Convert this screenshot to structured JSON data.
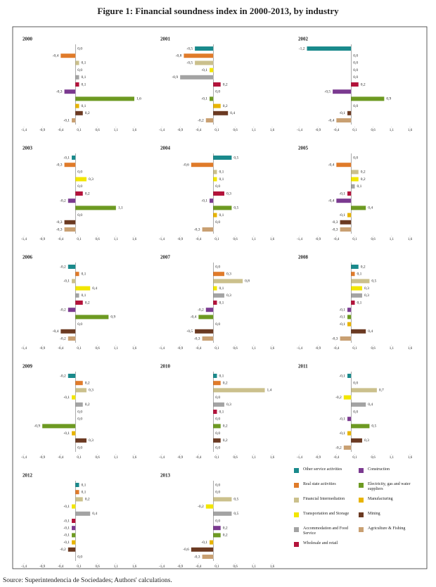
{
  "chart_data": {
    "type": "bar",
    "orientation": "horizontal",
    "title": "Figure 1: Financial soundness index in 2000-2013, by industry",
    "source": "Source: Superintendencia de Sociedades; Authors' calculations.",
    "categories": [
      "Other service activities",
      "Real state activities",
      "Financial Intermediation",
      "Transportation and Storage",
      "Accommodation and Food Service",
      "Wholesale and retail",
      "Construction",
      "Electricity, gas and water suppliers",
      "Manufacturing",
      "Mining",
      "Agriculture & Fishing"
    ],
    "colors": [
      "#1a8a8c",
      "#e07b2a",
      "#cbc08c",
      "#f2e600",
      "#a3a3a3",
      "#b3133b",
      "#7b3a90",
      "#6d9a22",
      "#e8b400",
      "#6b3a22",
      "#c9a072"
    ],
    "xlim": [
      -1.4,
      1.6
    ],
    "xticks": [
      {
        "value": -1.4,
        "label": "-1,4"
      },
      {
        "value": -0.9,
        "label": "-0,9"
      },
      {
        "value": -0.4,
        "label": "-0,4"
      },
      {
        "value": 0.1,
        "label": "0,1"
      },
      {
        "value": 0.6,
        "label": "0,6"
      },
      {
        "value": 1.1,
        "label": "1,1"
      },
      {
        "value": 1.6,
        "label": "1,6"
      }
    ],
    "panels": [
      {
        "title": "2000",
        "values": [
          0.0,
          -0.4,
          0.1,
          0.0,
          0.1,
          0.1,
          -0.3,
          1.6,
          0.1,
          0.2,
          -0.1
        ],
        "value_labels": [
          "0,0",
          "-0,4",
          "0,1",
          "0,0",
          "0,1",
          "0,1",
          "-0,3",
          "1,6",
          "0,1",
          "0,2",
          "-0,1"
        ]
      },
      {
        "title": "2001",
        "values": [
          -0.5,
          -0.8,
          -0.5,
          -0.1,
          -0.9,
          0.2,
          0.0,
          -0.1,
          0.2,
          0.4,
          -0.2
        ],
        "value_labels": [
          "-0,5",
          "-0,8",
          "-0,5",
          "-0,1",
          "-0,9",
          "0,2",
          "0,0",
          "-0,1",
          "0,2",
          "0,4",
          "-0,2"
        ]
      },
      {
        "title": "2002",
        "values": [
          -1.2,
          0.0,
          0.0,
          0.0,
          0.0,
          0.2,
          -0.5,
          0.9,
          0.0,
          -0.1,
          -0.4
        ],
        "value_labels": [
          "-1,2",
          "0,0",
          "0,0",
          "0,0",
          "0,0",
          "0,2",
          "-0,5",
          "0,9",
          "0,0",
          "-0,1",
          "-0,4"
        ]
      },
      {
        "title": "2003",
        "values": [
          -0.1,
          -0.3,
          0.0,
          0.3,
          0.0,
          0.2,
          -0.2,
          1.1,
          0.0,
          -0.3,
          -0.3
        ],
        "value_labels": [
          "-0,1",
          "-0,3",
          "0,0",
          "0,3",
          "0,0",
          "0,2",
          "-0,2",
          "1,1",
          "0,0",
          "-0,3",
          "-0,3"
        ]
      },
      {
        "title": "2004",
        "values": [
          0.5,
          -0.6,
          0.1,
          0.1,
          0.0,
          0.3,
          -0.1,
          0.5,
          0.1,
          0.0,
          -0.3
        ],
        "value_labels": [
          "0,5",
          "-0,6",
          "0,1",
          "0,1",
          "0,0",
          "0,3",
          "-0,1",
          "0,5",
          "0,1",
          "0,0",
          "-0,3"
        ]
      },
      {
        "title": "2005",
        "values": [
          0.0,
          -0.4,
          0.2,
          0.2,
          0.1,
          -0.1,
          -0.4,
          0.4,
          -0.1,
          -0.3,
          -0.3
        ],
        "value_labels": [
          "0,0",
          "-0,4",
          "0,2",
          "0,2",
          "0,1",
          "-0,1",
          "-0,4",
          "0,4",
          "-0,1",
          "-0,3",
          "-0,3"
        ]
      },
      {
        "title": "2006",
        "values": [
          -0.2,
          0.1,
          -0.1,
          0.4,
          0.1,
          0.2,
          -0.2,
          0.9,
          0.0,
          -0.4,
          -0.2
        ],
        "value_labels": [
          "-0,2",
          "0,1",
          "-0,1",
          "0,4",
          "0,1",
          "0,2",
          "-0,2",
          "0,9",
          "0,0",
          "-0,4",
          "-0,2"
        ]
      },
      {
        "title": "2007",
        "values": [
          0.0,
          0.3,
          0.8,
          0.1,
          0.3,
          0.1,
          -0.2,
          -0.4,
          0.0,
          -0.5,
          -0.3
        ],
        "value_labels": [
          "0,0",
          "0,3",
          "0,8",
          "0,1",
          "0,3",
          "0,1",
          "-0,2",
          "-0,4",
          "0,0",
          "-0,5",
          "-0,3"
        ]
      },
      {
        "title": "2008",
        "values": [
          0.2,
          0.1,
          0.5,
          0.3,
          0.3,
          0.1,
          -0.1,
          -0.1,
          -0.1,
          0.4,
          -0.3
        ],
        "value_labels": [
          "0,2",
          "0,1",
          "0,5",
          "0,3",
          "0,3",
          "0,1",
          "-0,1",
          "-0,1",
          "-0,1",
          "0,4",
          "-0,3"
        ]
      },
      {
        "title": "2009",
        "values": [
          -0.2,
          0.2,
          0.3,
          -0.1,
          0.2,
          0.0,
          0.0,
          -0.9,
          -0.1,
          0.3,
          0.0
        ],
        "value_labels": [
          "-0,2",
          "0,2",
          "0,3",
          "-0,1",
          "0,2",
          "0,0",
          "0,0",
          "-0,9",
          "-0,1",
          "0,3",
          "0,0"
        ]
      },
      {
        "title": "2010",
        "values": [
          0.1,
          0.2,
          1.4,
          0.0,
          0.3,
          0.1,
          0.0,
          0.2,
          0.0,
          0.2,
          0.0
        ],
        "value_labels": [
          "0,1",
          "0,2",
          "1,4",
          "0,0",
          "0,3",
          "0,1",
          "0,0",
          "0,2",
          "0,0",
          "0,2",
          "0,0"
        ]
      },
      {
        "title": "2011",
        "values": [
          -0.1,
          0.0,
          0.7,
          -0.2,
          0.4,
          0.0,
          -0.1,
          0.5,
          -0.1,
          0.3,
          -0.2
        ],
        "value_labels": [
          "-0,1",
          "0,0",
          "0,7",
          "-0,2",
          "0,4",
          "0,0",
          "-0,1",
          "0,5",
          "-0,1",
          "0,3",
          "-0,2"
        ]
      },
      {
        "title": "2012",
        "values": [
          0.1,
          0.1,
          0.2,
          -0.1,
          0.4,
          -0.1,
          -0.1,
          -0.1,
          -0.1,
          -0.2,
          0.0
        ],
        "value_labels": [
          "0,1",
          "0,1",
          "0,2",
          "-0,1",
          "0,4",
          "-0,1",
          "-0,1",
          "-0,1",
          "-0,1",
          "-0,2",
          "0,0"
        ]
      },
      {
        "title": "2013",
        "values": [
          0.0,
          0.0,
          0.5,
          -0.2,
          0.5,
          0.0,
          0.2,
          0.2,
          -0.1,
          -0.6,
          -0.3
        ],
        "value_labels": [
          "0,0",
          "0,0",
          "0,5",
          "-0,2",
          "0,5",
          "0,0",
          "0,2",
          "0,2",
          "-0,1",
          "-0,6",
          "-0,3"
        ]
      }
    ]
  }
}
